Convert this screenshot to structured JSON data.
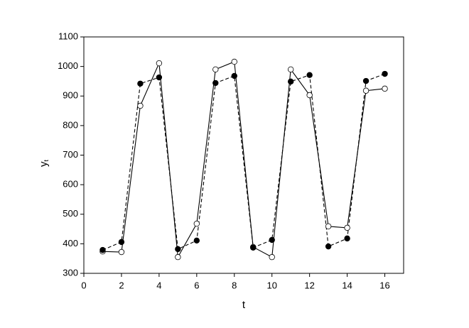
{
  "chart_data": {
    "type": "line",
    "xlabel": "t",
    "ylabel": "y",
    "ylabel_sub": "t",
    "x": [
      1,
      2,
      3,
      4,
      5,
      6,
      7,
      8,
      9,
      10,
      11,
      12,
      13,
      14,
      15,
      16
    ],
    "series": [
      {
        "color": "#000000",
        "line": "solid",
        "marker": "open",
        "values": [
          374,
          372,
          867,
          1011,
          355,
          468,
          990,
          1016,
          389,
          355,
          990,
          903,
          459,
          454,
          918,
          925
        ]
      },
      {
        "color": "#000000",
        "line": "dashed",
        "marker": "filled",
        "values": [
          379,
          406,
          942,
          963,
          382,
          411,
          944,
          968,
          387,
          413,
          949,
          971,
          391,
          418,
          951,
          975
        ]
      }
    ],
    "xlim": [
      0,
      17
    ],
    "xticks": [
      0,
      2,
      4,
      6,
      8,
      10,
      12,
      14,
      16
    ],
    "ylim": [
      300,
      1100
    ],
    "yticks": [
      300,
      400,
      500,
      600,
      700,
      800,
      900,
      1000,
      1100
    ],
    "grid": false
  }
}
